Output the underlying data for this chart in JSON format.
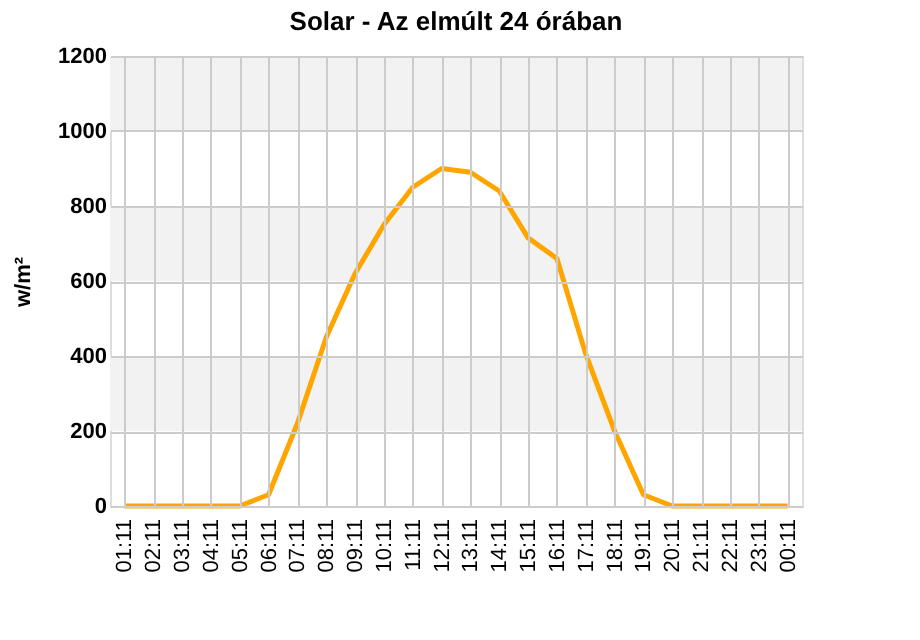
{
  "chart_data": {
    "type": "line",
    "title": "Solar - Az elmúlt 24 órában",
    "ylabel": "w/m²",
    "categories": [
      "01:11",
      "02:11",
      "03:11",
      "04:11",
      "05:11",
      "06:11",
      "07:11",
      "08:11",
      "09:11",
      "10:11",
      "11:11",
      "12:11",
      "13:11",
      "14:11",
      "15:11",
      "16:11",
      "17:11",
      "18:11",
      "19:11",
      "20:11",
      "21:11",
      "22:11",
      "23:11",
      "00:11"
    ],
    "series": [
      {
        "color": "#ffa500",
        "values": [
          0,
          0,
          0,
          0,
          0,
          30,
          220,
          450,
          620,
          750,
          850,
          900,
          890,
          840,
          715,
          660,
          405,
          200,
          30,
          0,
          0,
          0,
          0,
          0
        ]
      }
    ],
    "ylim": [
      0,
      1200
    ],
    "yticks": [
      0,
      200,
      400,
      600,
      800,
      1000,
      1200
    ],
    "bands": [
      {
        "axis": "y",
        "from": 200,
        "to": 400,
        "color": "#f2f2f2"
      },
      {
        "axis": "y",
        "from": 600,
        "to": 800,
        "color": "#f2f2f2"
      },
      {
        "axis": "y",
        "from": 1000,
        "to": 1200,
        "color": "#f2f2f2"
      }
    ],
    "grid": true,
    "marker": "none",
    "line_style": "solid"
  }
}
